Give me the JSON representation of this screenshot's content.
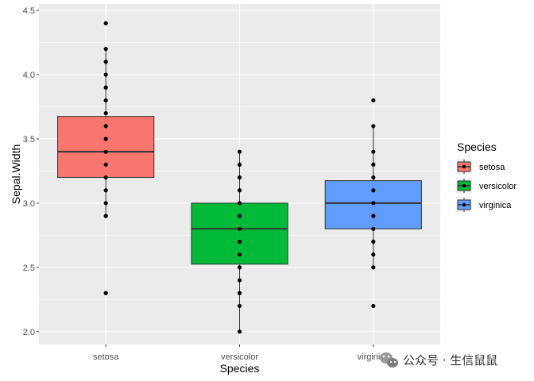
{
  "chart_data": {
    "type": "boxplot",
    "title": "",
    "xlabel": "Species",
    "ylabel": "Sepal.Width",
    "ylim": [
      1.9,
      4.55
    ],
    "yticks": [
      2.0,
      2.5,
      3.0,
      3.5,
      4.0,
      4.5
    ],
    "ytick_labels": [
      "2.0",
      "2.5",
      "3.0",
      "3.5",
      "4.0",
      "4.5"
    ],
    "categories": [
      "setosa",
      "versicolor",
      "virginica"
    ],
    "grid": true,
    "legend": {
      "title": "Species",
      "position": "right"
    },
    "series": [
      {
        "name": "setosa",
        "color": "#F8766D",
        "q1": 3.2,
        "median": 3.4,
        "q3": 3.675,
        "whisker_low": 2.9,
        "whisker_high": 4.2,
        "points": [
          2.3,
          2.9,
          3.0,
          3.1,
          3.2,
          3.3,
          3.4,
          3.5,
          3.6,
          3.7,
          3.8,
          3.9,
          4.0,
          4.1,
          4.2,
          4.4
        ]
      },
      {
        "name": "versicolor",
        "color": "#00BA38",
        "q1": 2.525,
        "median": 2.8,
        "q3": 3.0,
        "whisker_low": 2.0,
        "whisker_high": 3.4,
        "points": [
          2.0,
          2.2,
          2.3,
          2.4,
          2.5,
          2.6,
          2.7,
          2.8,
          2.9,
          3.0,
          3.1,
          3.2,
          3.3,
          3.4
        ]
      },
      {
        "name": "virginica",
        "color": "#619CFF",
        "q1": 2.8,
        "median": 3.0,
        "q3": 3.175,
        "whisker_low": 2.5,
        "whisker_high": 3.6,
        "points": [
          2.2,
          2.5,
          2.6,
          2.7,
          2.8,
          2.9,
          3.0,
          3.1,
          3.2,
          3.3,
          3.4,
          3.6,
          3.8
        ]
      }
    ]
  },
  "watermark": {
    "text": "公众号 · 生信鼠鼠"
  }
}
